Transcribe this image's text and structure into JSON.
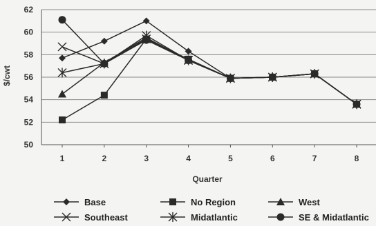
{
  "chart_data": {
    "type": "line",
    "title": "",
    "xlabel": "Quarter",
    "ylabel": "$/cwt",
    "ylim": [
      50,
      62
    ],
    "yticks": [
      50,
      52,
      54,
      56,
      58,
      60,
      62
    ],
    "x": [
      1,
      2,
      3,
      4,
      5,
      6,
      7,
      8
    ],
    "grid": true,
    "legend": "bottom",
    "series": [
      {
        "name": "Base",
        "marker": "diamond",
        "values": [
          57.7,
          59.2,
          61.0,
          58.3,
          55.9,
          56.0,
          56.3,
          53.6
        ]
      },
      {
        "name": "No Region",
        "marker": "square",
        "values": [
          52.2,
          54.4,
          59.4,
          57.6,
          55.9,
          56.0,
          56.3,
          53.6
        ]
      },
      {
        "name": "West",
        "marker": "triangle",
        "values": [
          54.5,
          57.3,
          59.5,
          57.5,
          55.9,
          56.0,
          56.3,
          53.6
        ]
      },
      {
        "name": "Southeast",
        "marker": "x",
        "values": [
          58.7,
          57.2,
          59.4,
          57.5,
          55.9,
          56.0,
          56.3,
          53.6
        ]
      },
      {
        "name": "Midatlantic",
        "marker": "star",
        "values": [
          56.4,
          57.2,
          59.7,
          57.5,
          55.9,
          56.0,
          56.3,
          53.6
        ]
      },
      {
        "name": "SE & Midatlantic",
        "marker": "circle",
        "values": [
          61.1,
          57.2,
          59.3,
          57.5,
          55.9,
          56.0,
          56.3,
          53.6
        ]
      }
    ]
  }
}
